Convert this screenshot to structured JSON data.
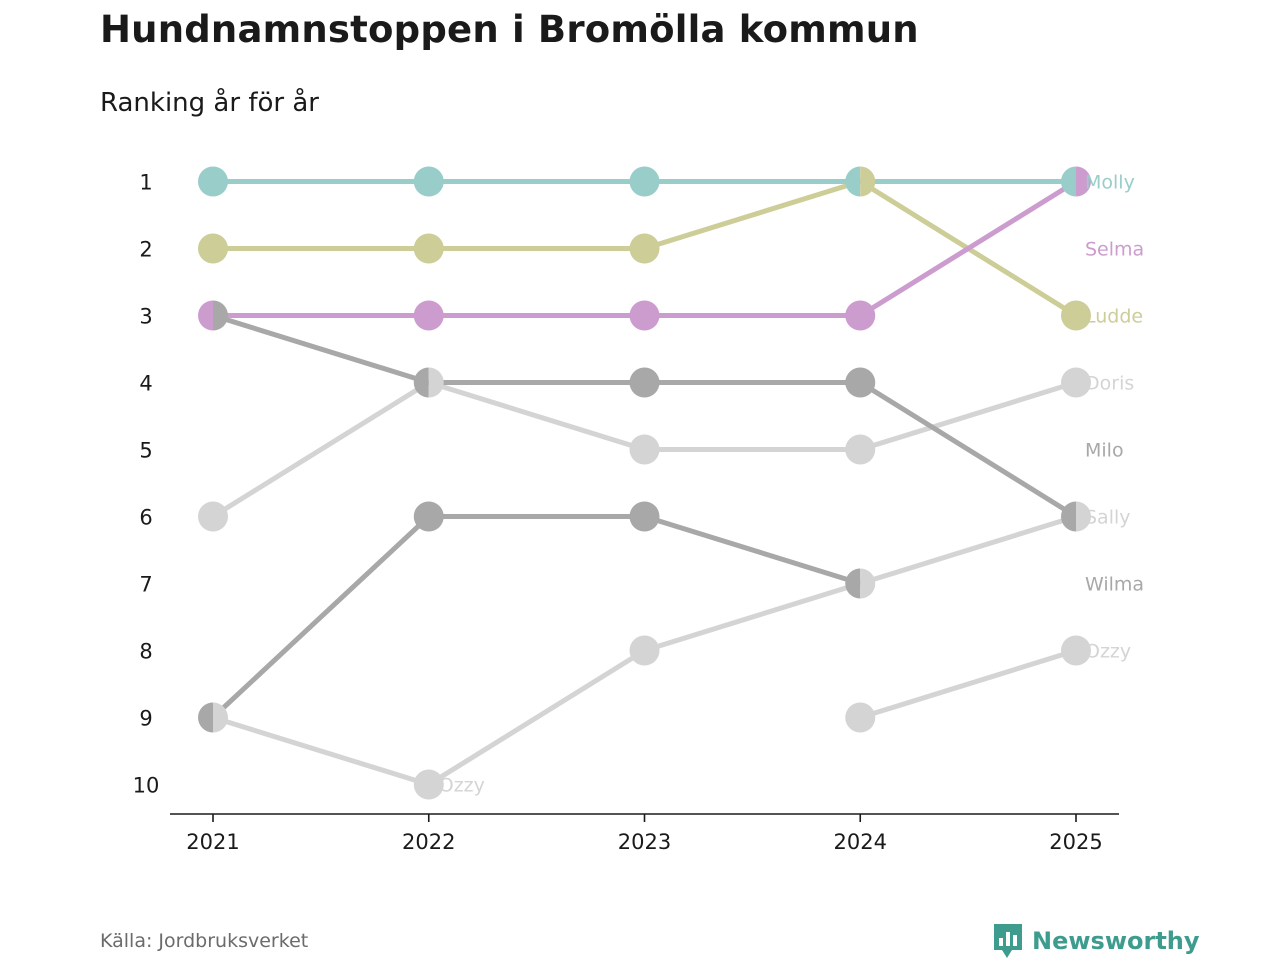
{
  "header": {
    "title": "Hundnamnstoppen i Bromölla kommun",
    "subtitle": "Ranking år för år"
  },
  "footer": {
    "source": "Källa: Jordbruksverket",
    "brand": "Newsworthy",
    "brand_color": "#3e9c8e"
  },
  "chart_data": {
    "type": "line",
    "subtype": "bump",
    "title": "Hundnamnstoppen i Bromölla kommun",
    "subtitle": "Ranking år för år",
    "x": [
      "2021",
      "2022",
      "2023",
      "2024",
      "2025"
    ],
    "y_ticks": [
      "1",
      "2",
      "3",
      "4",
      "5",
      "6",
      "7",
      "8",
      "9",
      "10"
    ],
    "ylim": [
      1,
      10
    ],
    "y_inverted": true,
    "series": [
      {
        "name": "Ozzy",
        "ranks": [
          null,
          null,
          null,
          9,
          8
        ],
        "color": "#d4d4d4",
        "end_label": "Ozzy"
      },
      {
        "name": "Sally",
        "ranks": [
          9,
          10,
          8,
          7,
          6
        ],
        "color": "#d4d4d4",
        "end_label": "Sally",
        "extra_label": "Ozzy"
      },
      {
        "name": "Doris",
        "ranks": [
          6,
          4,
          5,
          5,
          4
        ],
        "color": "#d4d4d4",
        "end_label": "Doris"
      },
      {
        "name": "Wilma",
        "ranks": [
          9,
          6,
          6,
          7,
          null
        ],
        "color": "#a8a8a8",
        "end_label": "Wilma"
      },
      {
        "name": "Milo",
        "ranks": [
          3,
          4,
          4,
          4,
          6
        ],
        "color": "#a8a8a8",
        "end_label": "Milo"
      },
      {
        "name": "Ludde",
        "ranks": [
          2,
          2,
          2,
          1,
          3
        ],
        "color": "#cdcd98",
        "end_label": "Ludde"
      },
      {
        "name": "Selma",
        "ranks": [
          3,
          3,
          3,
          3,
          1
        ],
        "color": "#cc9ccf",
        "end_label": "Selma"
      },
      {
        "name": "Molly",
        "ranks": [
          1,
          1,
          1,
          1,
          1
        ],
        "color": "#99cdca",
        "end_label": "Molly"
      }
    ],
    "label_ranks": {
      "Molly": 1,
      "Selma": 2,
      "Ludde": 3,
      "Doris": 4,
      "Milo": 5,
      "Sally": 6,
      "Wilma": 7,
      "Ozzy": 8
    },
    "other_label": {
      "text": "Ozzy",
      "year_index": 1,
      "rank": 10
    },
    "overlap_dot_color": "#6e6e73"
  }
}
